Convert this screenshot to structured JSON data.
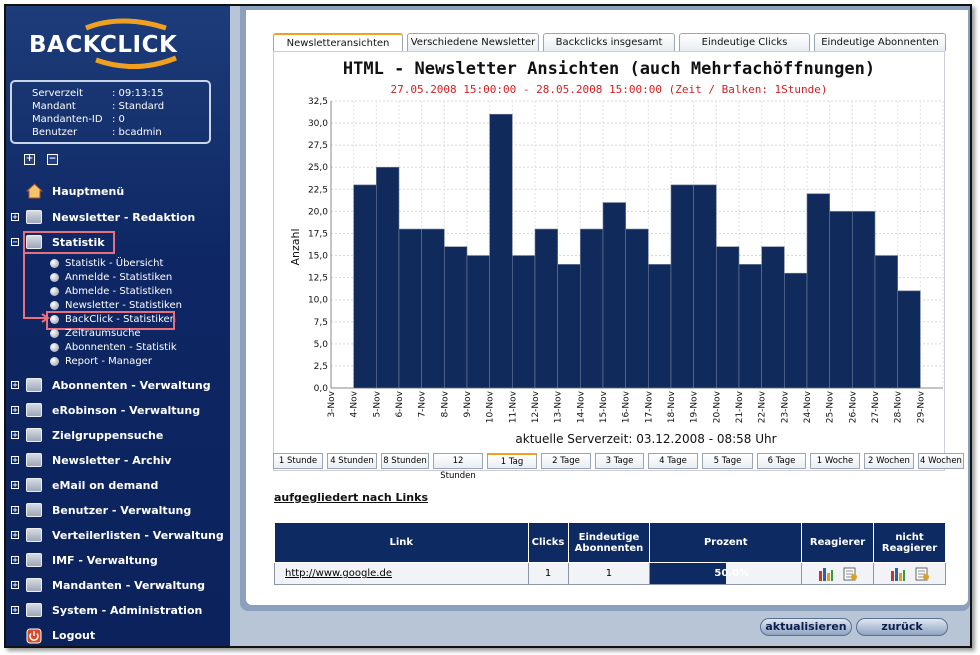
{
  "sidebar": {
    "logo_text": "BACKCLICK",
    "info": [
      {
        "key": "Serverzeit",
        "value": ": 09:13:15"
      },
      {
        "key": "Mandant",
        "value": ": Standard"
      },
      {
        "key": "Mandanten-ID",
        "value": ": 0"
      },
      {
        "key": "Benutzer",
        "value": ": bcadmin"
      }
    ],
    "items": [
      {
        "label": "Hauptmenü"
      },
      {
        "label": "Newsletter - Redaktion"
      },
      {
        "label": "Statistik"
      },
      {
        "label": "Abonnenten - Verwaltung"
      },
      {
        "label": "eRobinson - Verwaltung"
      },
      {
        "label": "Zielgruppensuche"
      },
      {
        "label": "Newsletter - Archiv"
      },
      {
        "label": "eMail on demand"
      },
      {
        "label": "Benutzer - Verwaltung"
      },
      {
        "label": "Verteilerlisten - Verwaltung"
      },
      {
        "label": "IMF - Verwaltung"
      },
      {
        "label": "Mandanten - Verwaltung"
      },
      {
        "label": "System - Administration"
      },
      {
        "label": "Logout"
      }
    ],
    "subitems": [
      {
        "label": "Statistik - Übersicht"
      },
      {
        "label": "Anmelde - Statistiken"
      },
      {
        "label": "Abmelde - Statistiken"
      },
      {
        "label": "Newsletter - Statistiken"
      },
      {
        "label": "BackClick - Statistiken"
      },
      {
        "label": "Zeitraumsuche"
      },
      {
        "label": "Abonnenten - Statistik"
      },
      {
        "label": "Report - Manager"
      }
    ]
  },
  "tabs": [
    "Newsletteransichten",
    "Verschiedene Newsletter",
    "Backclicks insgesamt",
    "Eindeutige Clicks",
    "Eindeutige Abonnenten"
  ],
  "interval_buttons": [
    "1 Stunde",
    "4 Stunden",
    "8 Stunden",
    "12 Stunden",
    "1 Tag",
    "2 Tage",
    "3 Tage",
    "4 Tage",
    "5 Tage",
    "6 Tage",
    "1 Woche",
    "2 Wochen",
    "4 Wochen"
  ],
  "chart_data": {
    "type": "bar",
    "title": "HTML - Newsletter Ansichten (auch Mehrfachöffnungen)",
    "subtitle": "27.05.2008 15:00:00 - 28.05.2008 15:00:00  (Zeit / Balken: 1Stunde)",
    "xlabel": "aktuelle Serverzeit: 03.12.2008 - 08:58 Uhr",
    "ylabel": "Anzahl",
    "ylim": [
      0,
      32.5
    ],
    "yticks": [
      "0,0",
      "2,5",
      "5,0",
      "7,5",
      "10,0",
      "12,5",
      "15,0",
      "17,5",
      "20,0",
      "22,5",
      "25,0",
      "27,5",
      "30,0",
      "32,5"
    ],
    "categories": [
      "3-Nov",
      "4-Nov",
      "5-Nov",
      "6-Nov",
      "7-Nov",
      "8-Nov",
      "9-Nov",
      "10-Nov",
      "11-Nov",
      "12-Nov",
      "13-Nov",
      "14-Nov",
      "15-Nov",
      "16-Nov",
      "17-Nov",
      "18-Nov",
      "19-Nov",
      "20-Nov",
      "21-Nov",
      "22-Nov",
      "23-Nov",
      "24-Nov",
      "25-Nov",
      "26-Nov",
      "27-Nov",
      "28-Nov",
      "29-Nov"
    ],
    "values": [
      0,
      23,
      25,
      18,
      18,
      16,
      15,
      31,
      15,
      18,
      14,
      18,
      21,
      18,
      14,
      23,
      23,
      16,
      14,
      16,
      13,
      22,
      20,
      20,
      15,
      11,
      0
    ],
    "bar_color": "#102a5c",
    "grid": true
  },
  "links_heading": "aufgegliedert nach Links",
  "table": {
    "headers": [
      "Link",
      "Clicks",
      "Eindeutige Abonnenten",
      "Prozent",
      "Reagierer",
      "nicht Reagierer"
    ],
    "rows": [
      {
        "link": "http://www.google.de",
        "clicks": "1",
        "unique": "1",
        "percent": "50.0%",
        "percent_value": 0.5
      }
    ]
  },
  "footer": {
    "refresh": "aktualisieren",
    "back": "zurück"
  }
}
